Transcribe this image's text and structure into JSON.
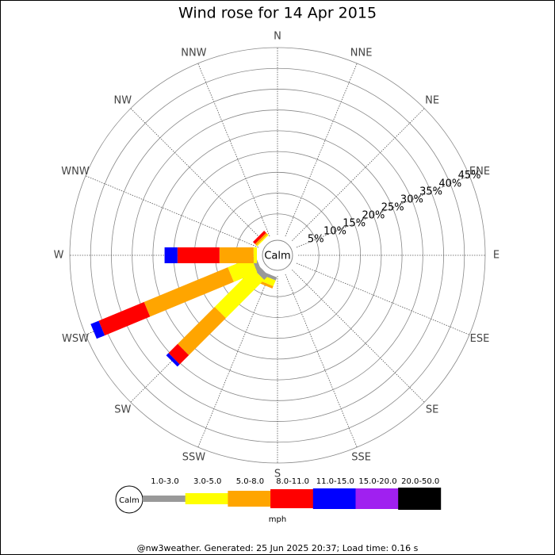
{
  "chart_data": {
    "type": "windrose",
    "title": "Wind rose for 14 Apr 2015",
    "directions": [
      "N",
      "NNE",
      "NE",
      "ENE",
      "E",
      "ESE",
      "SE",
      "SSE",
      "S",
      "SSW",
      "SW",
      "WSW",
      "W",
      "WNW",
      "NW",
      "NNW"
    ],
    "calm_label": "Calm",
    "rlim": [
      0,
      45
    ],
    "rticks": [
      {
        "value": 5,
        "label": "5%"
      },
      {
        "value": 10,
        "label": "10%"
      },
      {
        "value": 15,
        "label": "15%"
      },
      {
        "value": 20,
        "label": "20%"
      },
      {
        "value": 25,
        "label": "25%"
      },
      {
        "value": 30,
        "label": "30%"
      },
      {
        "value": 35,
        "label": "35%"
      },
      {
        "value": 40,
        "label": "40%"
      },
      {
        "value": 45,
        "label": "45%"
      }
    ],
    "series": [
      {
        "name": "1.0-3.0",
        "color": "#999999",
        "values": [
          0,
          0,
          0,
          0,
          0,
          0,
          0,
          0,
          0,
          0.8,
          1.5,
          1.1,
          0,
          0,
          0,
          0
        ]
      },
      {
        "name": "3.0-5.0",
        "color": "#ffff00",
        "values": [
          0,
          0,
          0,
          0,
          0,
          0,
          0,
          0,
          0,
          1.5,
          13,
          6.1,
          0.8,
          0,
          0.3,
          0
        ]
      },
      {
        "name": "5.0-8.0",
        "color": "#ffa500",
        "values": [
          0,
          0,
          0,
          0,
          0,
          0,
          0,
          0,
          0,
          0.6,
          12.6,
          21.8,
          8.2,
          0,
          0.5,
          0
        ]
      },
      {
        "name": "8.0-11.0",
        "color": "#ff0000",
        "values": [
          0,
          0,
          0,
          0,
          0,
          0,
          0,
          0,
          0,
          0,
          3.1,
          11.8,
          10.1,
          0,
          0.7,
          0
        ]
      },
      {
        "name": "11.0-15.0",
        "color": "#0000ff",
        "values": [
          0,
          0,
          0,
          0,
          0,
          0,
          0,
          0,
          0,
          0,
          0.8,
          2.1,
          3.1,
          0,
          0,
          0
        ]
      },
      {
        "name": "15.0-20.0",
        "color": "#a020f0",
        "values": [
          0,
          0,
          0,
          0,
          0,
          0,
          0,
          0,
          0,
          0,
          0,
          0,
          0,
          0,
          0,
          0
        ]
      },
      {
        "name": "20.0-50.0",
        "color": "#000000",
        "values": [
          0,
          0,
          0,
          0,
          0,
          0,
          0,
          0,
          0,
          0,
          0,
          0,
          0,
          0,
          0,
          0
        ]
      }
    ],
    "unit": "mph",
    "footer": "@nw3weather. Generated: 25 Jun 2025 20:37; Load time: 0.16 s"
  }
}
